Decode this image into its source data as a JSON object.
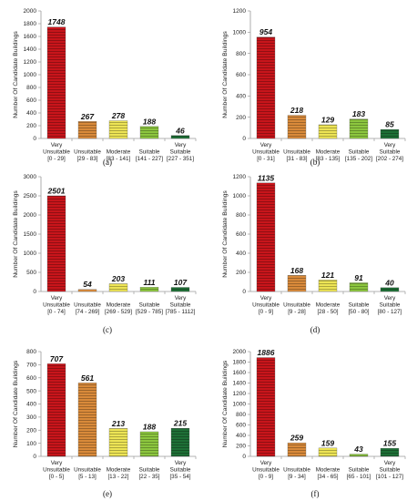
{
  "colors": {
    "very_unsuitable": "#c8151b",
    "unsuitable": "#d98a3a",
    "moderate": "#ede455",
    "suitable": "#8cc63f",
    "very_suitable": "#1e6f36",
    "axis": "#9a9a9a",
    "grid": "#d9d9d9"
  },
  "chart_data": [
    {
      "type": "bar",
      "panel": "(a)",
      "ylabel": "Number Of Candidate Buildings",
      "ylim": [
        0,
        2000
      ],
      "ytick_step": 200,
      "categories": [
        {
          "name": "Very Unsuitable",
          "range": "[0 - 29]"
        },
        {
          "name": "Unsuitable",
          "range": "[29 - 83]"
        },
        {
          "name": "Moderate",
          "range": "[83 - 141]"
        },
        {
          "name": "Suitable",
          "range": "[141 - 227]"
        },
        {
          "name": "Very Suitable",
          "range": "[227 - 351]"
        }
      ],
      "values": [
        1748,
        267,
        278,
        188,
        46
      ]
    },
    {
      "type": "bar",
      "panel": "(b)",
      "ylabel": "Number Of Candidate Buildings",
      "ylim": [
        0,
        1200
      ],
      "ytick_step": 200,
      "categories": [
        {
          "name": "Very Unsuitable",
          "range": "[0 - 31]"
        },
        {
          "name": "Unsuitable",
          "range": "[31 - 83]"
        },
        {
          "name": "Moderate",
          "range": "[83 - 135]"
        },
        {
          "name": "Suitable",
          "range": "[135 - 202]"
        },
        {
          "name": "Very Suitable",
          "range": "[202 - 274]"
        }
      ],
      "values": [
        954,
        218,
        129,
        183,
        85
      ]
    },
    {
      "type": "bar",
      "panel": "(c)",
      "ylabel": "Number Of Candidate Buildings",
      "ylim": [
        0,
        3000
      ],
      "ytick_step": 500,
      "categories": [
        {
          "name": "Very Unsuitable",
          "range": "[0 - 74]"
        },
        {
          "name": "Unsuitable",
          "range": "[74 - 269]"
        },
        {
          "name": "Moderate",
          "range": "[269 - 529]"
        },
        {
          "name": "Suitable",
          "range": "[529 - 785]"
        },
        {
          "name": "Very Suitable",
          "range": "[785 - 1112]"
        }
      ],
      "values": [
        2501,
        54,
        203,
        111,
        107
      ]
    },
    {
      "type": "bar",
      "panel": "(d)",
      "ylabel": "Number Of Candidate Buildings",
      "ylim": [
        0,
        1200
      ],
      "ytick_step": 200,
      "categories": [
        {
          "name": "Very Unsuitable",
          "range": "[0 - 9]"
        },
        {
          "name": "Unsuitable",
          "range": "[9 - 28]"
        },
        {
          "name": "Moderate",
          "range": "[28 - 50]"
        },
        {
          "name": "Suitable",
          "range": "[50 - 80]"
        },
        {
          "name": "Very Suitable",
          "range": "[80 - 127]"
        }
      ],
      "values": [
        1135,
        168,
        121,
        91,
        40
      ]
    },
    {
      "type": "bar",
      "panel": "(e)",
      "ylabel": "Number Of Candidate Buildings",
      "ylim": [
        0,
        800
      ],
      "ytick_step": 100,
      "categories": [
        {
          "name": "Very Unsuitable",
          "range": "[0 - 5]"
        },
        {
          "name": "Unsuitable",
          "range": "[5 - 13]"
        },
        {
          "name": "Moderate",
          "range": "[13 - 22]"
        },
        {
          "name": "Suitable",
          "range": "[22 - 35]"
        },
        {
          "name": "Very Suitable",
          "range": "[35 - 54]"
        }
      ],
      "values": [
        707,
        561,
        213,
        188,
        215
      ]
    },
    {
      "type": "bar",
      "panel": "(f)",
      "ylabel": "Number Of Candidate Buildings",
      "ylim": [
        0,
        2000
      ],
      "ytick_step": 200,
      "categories": [
        {
          "name": "Very Unsuitable",
          "range": "[0 - 9]"
        },
        {
          "name": "Unsuitable",
          "range": "[9 - 34]"
        },
        {
          "name": "Moderate",
          "range": "[34 - 65]"
        },
        {
          "name": "Suitable",
          "range": "[65 - 101]"
        },
        {
          "name": "Very Suitable",
          "range": "[101 - 127]"
        }
      ],
      "values": [
        1886,
        259,
        159,
        43,
        155
      ]
    }
  ]
}
